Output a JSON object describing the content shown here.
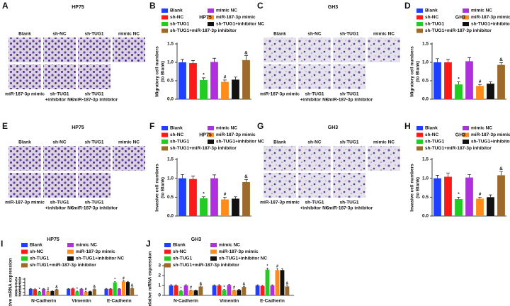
{
  "image_panels": [
    {
      "label": "A",
      "title": "HP75",
      "top_labels": [
        "Blank",
        "sh-NC",
        "sh-TUG1",
        "mimic NC"
      ],
      "bottom_labels": [
        [
          "miR-187-3p mimic"
        ],
        [
          "sh-TUG1",
          "+inhibitor NC"
        ],
        [
          "sh-TUG1",
          "+miR-187-3p inhibitor"
        ]
      ]
    },
    {
      "label": "C",
      "title": "GH3",
      "top_labels": [
        "Blank",
        "sh-NC",
        "sh-TUG1",
        "mimic NC"
      ],
      "bottom_labels": [
        [
          "miR-187-3p mimic"
        ],
        [
          "sh-TUG1",
          "+inhibitor NC"
        ],
        [
          "sh-TUG1",
          "+miR-187-3p inhibitor"
        ]
      ]
    },
    {
      "label": "E",
      "title": "HP75",
      "top_labels": [
        "Blank",
        "sh-NC",
        "sh-TUG1",
        "mimic NC"
      ],
      "bottom_labels": [
        [
          "miR-187-3p mimic"
        ],
        [
          "sh-TUG1",
          "+inhibitor NC"
        ],
        [
          "sh-TUG1",
          "+miR-187-3p inhibitor"
        ]
      ]
    },
    {
      "label": "G",
      "title": "GH3",
      "top_labels": [
        "Blank",
        "sh-NC",
        "sh-TUG1",
        "mimic NC"
      ],
      "bottom_labels": [
        [
          "miR-187-3p mimic"
        ],
        [
          "sh-TUG1",
          "+inhibitor NC"
        ],
        [
          "sh-TUG1",
          "+miR-187-3p inhibitor"
        ]
      ]
    }
  ],
  "chart_data": [
    {
      "type": "bar",
      "label": "B",
      "title": "HP75",
      "ylabel": [
        "Migratory cell numbers",
        "(to Blank)"
      ],
      "categories": [
        "Blank",
        "sh-NC",
        "sh-TUG1",
        "mimic NC",
        "miR-187-3p mimic",
        "sh-TUG1+inhibitor NC",
        "sh-TUG1+miR-187-3p inhibitor"
      ],
      "colors": [
        "#1f3fff",
        "#ff1a1a",
        "#22cc22",
        "#b030e0",
        "#ff8c1a",
        "#111111",
        "#9c6a2a"
      ],
      "values": [
        1.0,
        0.98,
        0.52,
        1.01,
        0.47,
        0.53,
        1.06
      ],
      "errors": [
        0.08,
        0.07,
        0.06,
        0.1,
        0.05,
        0.07,
        0.12
      ],
      "sig_labels": [
        null,
        null,
        "*",
        null,
        "#",
        null,
        "&"
      ],
      "ylim": [
        0,
        1.5
      ],
      "yticks": [
        {
          "value": 0,
          "label": "0.0"
        },
        0.5,
        {
          "value": 1,
          "label": "1.0"
        },
        1.5
      ]
    },
    {
      "type": "bar",
      "label": "D",
      "title": "GH3",
      "ylabel": [
        "Migratory cell numbers",
        "(to Blank)"
      ],
      "categories": [
        "Blank",
        "sh-NC",
        "sh-TUG1",
        "mimic NC",
        "miR-187-3p mimic",
        "sh-TUG1+inhibitor NC",
        "sh-TUG1+miR-187-3p inhibitor"
      ],
      "colors": [
        "#1f3fff",
        "#ff1a1a",
        "#22cc22",
        "#b030e0",
        "#ff8c1a",
        "#111111",
        "#9c6a2a"
      ],
      "values": [
        1.0,
        1.0,
        0.4,
        1.03,
        0.36,
        0.42,
        0.93
      ],
      "errors": [
        0.1,
        0.08,
        0.07,
        0.1,
        0.04,
        0.05,
        0.06
      ],
      "sig_labels": [
        null,
        null,
        "*",
        null,
        "#",
        null,
        "&"
      ],
      "ylim": [
        0,
        1.5
      ],
      "yticks": [
        {
          "value": 0,
          "label": "0.0"
        },
        0.5,
        {
          "value": 1,
          "label": "1.0"
        },
        1.5
      ]
    },
    {
      "type": "bar",
      "label": "F",
      "title": "HP75",
      "ylabel": [
        "Invasive cell numbers",
        "(to Blank)"
      ],
      "categories": [
        "Blank",
        "sh-NC",
        "sh-TUG1",
        "mimic NC",
        "miR-187-3p mimic",
        "sh-TUG1+inhibitor NC",
        "sh-TUG1+miR-187-3p inhibitor"
      ],
      "colors": [
        "#1f3fff",
        "#ff1a1a",
        "#22cc22",
        "#b030e0",
        "#ff8c1a",
        "#111111",
        "#9c6a2a"
      ],
      "values": [
        1.0,
        0.98,
        0.47,
        1.0,
        0.44,
        0.46,
        0.9
      ],
      "errors": [
        0.1,
        0.08,
        0.04,
        0.09,
        0.06,
        0.05,
        0.07
      ],
      "sig_labels": [
        null,
        null,
        "*",
        null,
        "#",
        null,
        "&"
      ],
      "ylim": [
        0,
        1.5
      ],
      "yticks": [
        {
          "value": 0,
          "label": "0.0"
        },
        0.5,
        {
          "value": 1,
          "label": "1.0"
        },
        1.5
      ]
    },
    {
      "type": "bar",
      "label": "H",
      "title": "GH3",
      "ylabel": [
        "Invasive cell numbers",
        "(to Blank)"
      ],
      "categories": [
        "Blank",
        "sh-NC",
        "sh-TUG1",
        "mimic NC",
        "miR-187-3p mimic",
        "sh-TUG1+inhibitor NC",
        "sh-TUG1+miR-187-3p inhibitor"
      ],
      "colors": [
        "#1f3fff",
        "#ff1a1a",
        "#22cc22",
        "#b030e0",
        "#ff8c1a",
        "#111111",
        "#9c6a2a"
      ],
      "values": [
        1.0,
        1.04,
        0.45,
        1.02,
        0.46,
        0.5,
        1.08
      ],
      "errors": [
        0.08,
        0.1,
        0.05,
        0.08,
        0.04,
        0.06,
        0.1
      ],
      "sig_labels": [
        null,
        null,
        "*",
        null,
        "#",
        null,
        "&"
      ],
      "ylim": [
        0,
        1.5
      ],
      "yticks": [
        {
          "value": 0,
          "label": "0.0"
        },
        0.5,
        {
          "value": 1,
          "label": "1.0"
        },
        1.5
      ]
    },
    {
      "type": "grouped_bar",
      "label": "I",
      "title": "HP75",
      "ylabel": [
        "Relative mRNA expression"
      ],
      "categories": [
        "N-Cadherin",
        "Vimentin",
        "E-Cadherin"
      ],
      "series": [
        {
          "name": "Blank",
          "color": "#1f3fff",
          "values": [
            1.0,
            1.0,
            1.0
          ],
          "errors": [
            0.06,
            0.05,
            0.06
          ]
        },
        {
          "name": "sh-NC",
          "color": "#ff1a1a",
          "values": [
            0.95,
            1.05,
            1.0
          ],
          "errors": [
            0.05,
            0.06,
            0.05
          ]
        },
        {
          "name": "sh-TUG1",
          "color": "#22cc22",
          "values": [
            0.55,
            0.6,
            2.0
          ],
          "errors": [
            0.05,
            0.05,
            0.1
          ],
          "sig_labels": [
            "*",
            "*",
            "*"
          ]
        },
        {
          "name": "mimic NC",
          "color": "#b030e0",
          "values": [
            1.0,
            1.0,
            1.0
          ],
          "errors": [
            0.06,
            0.06,
            0.05
          ]
        },
        {
          "name": "miR-187-3p mimic",
          "color": "#ff8c1a",
          "values": [
            0.6,
            0.55,
            2.15
          ],
          "errors": [
            0.05,
            0.04,
            0.12
          ],
          "sig_labels": [
            "#",
            "#",
            "#"
          ]
        },
        {
          "name": "sh-TUG1+inhibitor NC",
          "color": "#111111",
          "values": [
            0.65,
            0.6,
            2.05
          ],
          "errors": [
            0.05,
            0.05,
            0.1
          ]
        },
        {
          "name": "sh-TUG1+miR-187-3p inhibitor",
          "color": "#9c6a2a",
          "values": [
            0.9,
            0.95,
            1.1
          ],
          "errors": [
            0.06,
            0.05,
            0.08
          ],
          "sig_labels": [
            "&",
            "&",
            "&"
          ]
        }
      ],
      "ylim": [
        0,
        2.5
      ],
      "yticks": [
        {
          "value": 0,
          "label": "0.0"
        },
        0.5,
        {
          "value": 1,
          "label": "1.0"
        },
        1.5,
        {
          "value": 2,
          "label": "2.0"
        },
        2.5
      ]
    },
    {
      "type": "grouped_bar",
      "label": "J",
      "title": "GH3",
      "ylabel": [
        "Relative mRNA expression"
      ],
      "categories": [
        "N-Cadherin",
        "Vimentin",
        "E-Cadherin"
      ],
      "series": [
        {
          "name": "Blank",
          "color": "#1f3fff",
          "values": [
            1.0,
            1.0,
            1.0
          ],
          "errors": [
            0.07,
            0.06,
            0.06
          ]
        },
        {
          "name": "sh-NC",
          "color": "#ff1a1a",
          "values": [
            1.0,
            1.0,
            0.95
          ],
          "errors": [
            0.06,
            0.07,
            0.06
          ]
        },
        {
          "name": "sh-TUG1",
          "color": "#22cc22",
          "values": [
            0.45,
            0.55,
            2.6
          ],
          "errors": [
            0.05,
            0.05,
            0.15
          ],
          "sig_labels": [
            "*",
            "*",
            "*"
          ]
        },
        {
          "name": "mimic NC",
          "color": "#b030e0",
          "values": [
            1.0,
            1.05,
            1.0
          ],
          "errors": [
            0.07,
            0.06,
            0.06
          ]
        },
        {
          "name": "miR-187-3p mimic",
          "color": "#ff8c1a",
          "values": [
            0.5,
            0.5,
            2.55
          ],
          "errors": [
            0.05,
            0.05,
            0.15
          ],
          "sig_labels": [
            "#",
            "#",
            "#"
          ]
        },
        {
          "name": "sh-TUG1+inhibitor NC",
          "color": "#111111",
          "values": [
            0.5,
            0.55,
            2.55
          ],
          "errors": [
            0.05,
            0.05,
            0.12
          ]
        },
        {
          "name": "sh-TUG1+miR-187-3p inhibitor",
          "color": "#9c6a2a",
          "values": [
            0.9,
            0.85,
            0.9
          ],
          "errors": [
            0.06,
            0.06,
            0.07
          ],
          "sig_labels": [
            "&",
            "&",
            "&"
          ]
        }
      ],
      "ylim": [
        0,
        3
      ],
      "yticks": [
        0,
        1,
        2,
        3
      ]
    }
  ]
}
